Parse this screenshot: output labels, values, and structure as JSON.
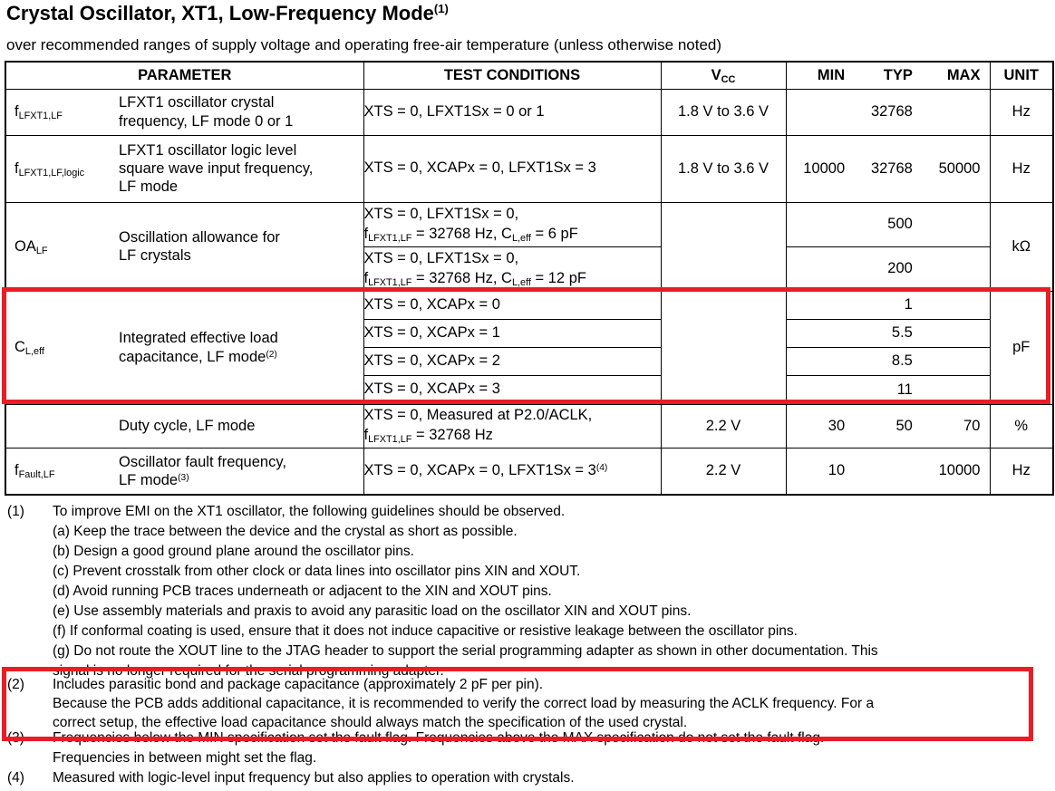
{
  "title": {
    "text": "Crystal Oscillator, XT1, Low-Frequency Mode",
    "sup": "(1)"
  },
  "subtitle": "over recommended ranges of supply voltage and operating free-air temperature (unless otherwise noted)",
  "colors": {
    "highlight_red": "#EC1C24",
    "border_black": "#000000",
    "background": "#ffffff"
  },
  "table": {
    "headers": {
      "parameter": "PARAMETER",
      "test_conditions": "TEST CONDITIONS",
      "vcc": [
        {
          "t": "V"
        },
        {
          "t": "CC",
          "s": "sub"
        }
      ],
      "min": "MIN",
      "typ": "TYP",
      "max": "MAX",
      "unit": "UNIT"
    },
    "r1": {
      "symbol": [
        {
          "t": "f"
        },
        {
          "t": "LFXT1,LF",
          "s": "sub"
        }
      ],
      "param": [
        {
          "t": "LFXT1 oscillator crystal"
        },
        {
          "br": true
        },
        {
          "t": "frequency, LF mode 0 or 1"
        }
      ],
      "cond": [
        {
          "t": "XTS = 0, LFXT1Sx = 0 or 1"
        }
      ],
      "vcc": "1.8 V to 3.6 V",
      "min": "",
      "typ": "32768",
      "max": "",
      "unit": "Hz"
    },
    "r2": {
      "symbol": [
        {
          "t": "f"
        },
        {
          "t": "LFXT1,LF,logic",
          "s": "sub"
        }
      ],
      "param": [
        {
          "t": "LFXT1 oscillator logic level"
        },
        {
          "br": true
        },
        {
          "t": "square wave input frequency,"
        },
        {
          "br": true
        },
        {
          "t": "LF mode"
        }
      ],
      "cond": [
        {
          "t": "XTS = 0, XCAPx = 0, LFXT1Sx = 3"
        }
      ],
      "vcc": "1.8 V to 3.6 V",
      "min": "10000",
      "typ": "32768",
      "max": "50000",
      "unit": "Hz"
    },
    "r3": {
      "symbol": [
        {
          "t": "OA"
        },
        {
          "t": "LF",
          "s": "sub"
        }
      ],
      "param": [
        {
          "t": "Oscillation allowance for"
        },
        {
          "br": true
        },
        {
          "t": "LF crystals"
        }
      ],
      "vcc": "",
      "unit": "kΩ",
      "a": {
        "cond": [
          {
            "t": "XTS = 0, LFXT1Sx = 0,"
          },
          {
            "br": true
          },
          {
            "t": "f"
          },
          {
            "t": "LFXT1,LF",
            "s": "sub"
          },
          {
            "t": " = 32768 Hz, C"
          },
          {
            "t": "L,eff",
            "s": "sub"
          },
          {
            "t": " = 6 pF"
          }
        ],
        "min": "",
        "typ": "500",
        "max": ""
      },
      "b": {
        "cond": [
          {
            "t": "XTS = 0, LFXT1Sx = 0,"
          },
          {
            "br": true
          },
          {
            "t": "f"
          },
          {
            "t": "LFXT1,LF",
            "s": "sub"
          },
          {
            "t": " = 32768 Hz, C"
          },
          {
            "t": "L,eff",
            "s": "sub"
          },
          {
            "t": " = 12 pF"
          }
        ],
        "min": "",
        "typ": "200",
        "max": ""
      }
    },
    "r4": {
      "symbol": [
        {
          "t": "C"
        },
        {
          "t": "L,eff",
          "s": "sub"
        }
      ],
      "param": [
        {
          "t": "Integrated effective load"
        },
        {
          "br": true
        },
        {
          "t": "capacitance, LF mode"
        },
        {
          "t": "(2)",
          "s": "sup"
        }
      ],
      "vcc": "",
      "unit": "pF",
      "a": {
        "cond": [
          {
            "t": "XTS = 0, XCAPx = 0"
          }
        ],
        "min": "",
        "typ": "1",
        "max": ""
      },
      "b": {
        "cond": [
          {
            "t": "XTS = 0, XCAPx = 1"
          }
        ],
        "min": "",
        "typ": "5.5",
        "max": ""
      },
      "c": {
        "cond": [
          {
            "t": "XTS = 0, XCAPx = 2"
          }
        ],
        "min": "",
        "typ": "8.5",
        "max": ""
      },
      "d": {
        "cond": [
          {
            "t": "XTS = 0, XCAPx = 3"
          }
        ],
        "min": "",
        "typ": "11",
        "max": ""
      }
    },
    "r5": {
      "symbol": [],
      "param": [
        {
          "t": "Duty cycle, LF mode"
        }
      ],
      "cond": [
        {
          "t": "XTS = 0, Measured at P2.0/ACLK,"
        },
        {
          "br": true
        },
        {
          "t": "f"
        },
        {
          "t": "LFXT1,LF",
          "s": "sub"
        },
        {
          "t": " = 32768 Hz"
        }
      ],
      "vcc": "2.2 V",
      "min": "30",
      "typ": "50",
      "max": "70",
      "unit": "%"
    },
    "r6": {
      "symbol": [
        {
          "t": "f"
        },
        {
          "t": "Fault,LF",
          "s": "sub"
        }
      ],
      "param": [
        {
          "t": "Oscillator fault frequency,"
        },
        {
          "br": true
        },
        {
          "t": "LF mode"
        },
        {
          "t": "(3)",
          "s": "sup"
        }
      ],
      "cond": [
        {
          "t": "XTS = 0, XCAPx = 0, LFXT1Sx = 3"
        },
        {
          "t": "(4)",
          "s": "sup"
        }
      ],
      "vcc": "2.2 V",
      "min": "10",
      "typ": "",
      "max": "10000",
      "unit": "Hz"
    }
  },
  "footnotes": [
    {
      "num": "(1)",
      "lines": [
        "To improve EMI on the XT1 oscillator, the following guidelines should be observed.",
        "(a) Keep the trace between the device and the crystal as short as possible.",
        "(b) Design a good ground plane around the oscillator pins.",
        "(c) Prevent crosstalk from other clock or data lines into oscillator pins XIN and XOUT.",
        "(d) Avoid running PCB traces underneath or adjacent to the XIN and XOUT pins.",
        "(e) Use assembly materials and praxis to avoid any parasitic load on the oscillator XIN and XOUT pins.",
        "(f) If conformal coating is used, ensure that it does not induce capacitive or resistive leakage between the oscillator pins.",
        "(g) Do not route the XOUT line to the JTAG header to support the serial programming adapter as shown in other documentation. This",
        "signal is no longer required for the serial programming adapter."
      ]
    },
    {
      "num": "(2)",
      "lines": [
        "Includes parasitic bond and package capacitance (approximately 2 pF per pin).",
        "Because the PCB adds additional capacitance, it is recommended to verify the correct load by measuring the ACLK frequency. For a",
        "correct setup, the effective load capacitance should always match the specification of the used crystal."
      ]
    },
    {
      "num": "(3)",
      "lines": [
        "Frequencies below the MIN specification set the fault flag. Frequencies above the MAX specification do not set the fault flag.",
        "Frequencies in between might set the flag."
      ]
    },
    {
      "num": "(4)",
      "lines": [
        "Measured with logic-level input frequency but also applies to operation with crystals."
      ]
    }
  ]
}
